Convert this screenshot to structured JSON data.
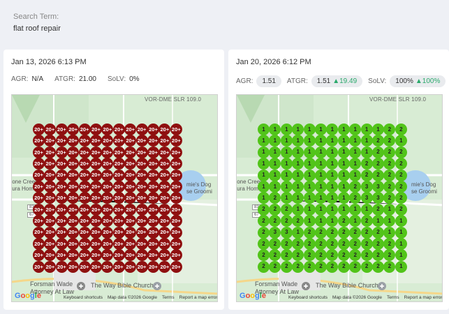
{
  "search": {
    "label": "Search Term:",
    "value": "flat roof repair"
  },
  "colors": {
    "red_pin": "#8f1010",
    "green_pin": "#52c41a",
    "up": "#2aa96b"
  },
  "panels": [
    {
      "date": "Jan 13, 2026 6:13 PM",
      "metrics": {
        "agr_label": "AGR:",
        "agr": "N/A",
        "atgr_label": "ATGR:",
        "atgr": "21.00",
        "solv_label": "SoLV:",
        "solv": "0%"
      },
      "grid": [
        [
          "20+",
          "20+",
          "20+",
          "20+",
          "20+",
          "20+",
          "20+",
          "20+",
          "20+",
          "20+",
          "20+",
          "20+",
          "20+"
        ],
        [
          "20+",
          "20+",
          "20+",
          "20+",
          "20+",
          "20+",
          "20+",
          "20+",
          "20+",
          "20+",
          "20+",
          "20+",
          "20+"
        ],
        [
          "20+",
          "20+",
          "20+",
          "20+",
          "20+",
          "20+",
          "20+",
          "20+",
          "20+",
          "20+",
          "20+",
          "20+",
          "20+"
        ],
        [
          "20+",
          "20+",
          "20+",
          "20+",
          "20+",
          "20+",
          "20+",
          "20+",
          "20+",
          "20+",
          "20+",
          "20+",
          "20+"
        ],
        [
          "20+",
          "20+",
          "20+",
          "20+",
          "20+",
          "20+",
          "20+",
          "20+",
          "20+",
          "20+",
          "20+",
          "20+",
          "20+"
        ],
        [
          "20+",
          "20+",
          "20+",
          "20+",
          "20+",
          "20+",
          "20+",
          "20+",
          "20+",
          "20+",
          "20+",
          "20+",
          "20+"
        ],
        [
          "20+",
          "20+",
          "20+",
          "20+",
          "20+",
          "20+",
          "20+",
          "20+",
          "20+",
          "20+",
          "20+",
          "20+",
          "20+"
        ],
        [
          "20+",
          "20+",
          "20+",
          "20+",
          "20+",
          "20+",
          "20+",
          "20+",
          "20+",
          "20+",
          "20+",
          "20+",
          "20+"
        ],
        [
          "20+",
          "20+",
          "20+",
          "20+",
          "20+",
          "20+",
          "20+",
          "20+",
          "20+",
          "20+",
          "20+",
          "20+",
          "20+"
        ],
        [
          "20+",
          "20+",
          "20+",
          "20+",
          "20+",
          "20+",
          "20+",
          "20+",
          "20+",
          "20+",
          "20+",
          "20+",
          "20+"
        ],
        [
          "20+",
          "20+",
          "20+",
          "20+",
          "20+",
          "20+",
          "20+",
          "20+",
          "20+",
          "20+",
          "20+",
          "20+",
          "20+"
        ],
        [
          "20+",
          "20+",
          "20+",
          "20+",
          "20+",
          "20+",
          "20+",
          "20+",
          "20+",
          "20+",
          "20+",
          "20+",
          "20+"
        ],
        [
          "20+",
          "20+",
          "20+",
          "20+",
          "20+",
          "20+",
          "20+",
          "20+",
          "20+",
          "20+",
          "20+",
          "20+",
          "20+"
        ]
      ],
      "pin_color": "red"
    },
    {
      "date": "Jan 20, 2026 6:12 PM",
      "metrics": {
        "agr_label": "AGR:",
        "agr": "1.51",
        "atgr_label": "ATGR:",
        "atgr": "1.51",
        "atgr_delta": "19.49",
        "solv_label": "SoLV:",
        "solv": "100%",
        "solv_delta": "100%"
      },
      "grid": [
        [
          "1",
          "1",
          "1",
          "1",
          "1",
          "1",
          "1",
          "1",
          "1",
          "1",
          "1",
          "2",
          "2"
        ],
        [
          "1",
          "1",
          "1",
          "1",
          "1",
          "1",
          "1",
          "1",
          "1",
          "1",
          "2",
          "2",
          "1"
        ],
        [
          "1",
          "1",
          "1",
          "1",
          "1",
          "1",
          "1",
          "1",
          "1",
          "1",
          "2",
          "2",
          "2"
        ],
        [
          "1",
          "1",
          "1",
          "1",
          "1",
          "1",
          "1",
          "1",
          "1",
          "2",
          "2",
          "2",
          "2"
        ],
        [
          "1",
          "1",
          "1",
          "1",
          "1",
          "1",
          "1",
          "1",
          "1",
          "2",
          "2",
          "2",
          "2"
        ],
        [
          "1",
          "1",
          "1",
          "1",
          "1",
          "1",
          "1",
          "1",
          "2",
          "3",
          "3",
          "2",
          "2"
        ],
        [
          "1",
          "2",
          "1",
          "1",
          "1",
          "1",
          "1",
          "1",
          "2",
          "3",
          "3",
          "2",
          "2"
        ],
        [
          "2",
          "2",
          "2",
          "1",
          "1",
          "1",
          "1",
          "1",
          "1",
          "1",
          "2",
          "1",
          "2"
        ],
        [
          "2",
          "2",
          "2",
          "2",
          "1",
          "1",
          "1",
          "2",
          "1",
          "2",
          "1",
          "1",
          "1"
        ],
        [
          "2",
          "3",
          "3",
          "1",
          "2",
          "2",
          "2",
          "2",
          "2",
          "2",
          "2",
          "1",
          "1"
        ],
        [
          "2",
          "2",
          "2",
          "2",
          "2",
          "2",
          "2",
          "2",
          "2",
          "2",
          "2",
          "2",
          "1"
        ],
        [
          "2",
          "2",
          "2",
          "2",
          "2",
          "2",
          "2",
          "2",
          "2",
          "2",
          "2",
          "2",
          "1"
        ],
        [
          "2",
          "2",
          "2",
          "2",
          "2",
          "2",
          "2",
          "2",
          "2",
          "2",
          "2",
          "2",
          "1"
        ]
      ],
      "pin_color": "green"
    }
  ],
  "map_labels": {
    "road_top": "VOR-DME SLR 109.0",
    "stone_creek": "tone Creek",
    "tura_home": "tura Home",
    "dog": "mie's Dog",
    "grooming": "se Groomi",
    "forsman_1": "Forsman Wade",
    "forsman_2": "Attorney At Law",
    "church": "The Way Bible Church",
    "route_1": "83",
    "route_2": "67"
  },
  "map_footer": {
    "shortcuts": "Keyboard shortcuts",
    "map_data": "Map data ©2026 Google",
    "terms": "Terms",
    "report": "Report a map error"
  },
  "google_logo": "Google",
  "icons": [
    "up-arrow-icon",
    "church-pin-icon",
    "route-shield-icon"
  ]
}
